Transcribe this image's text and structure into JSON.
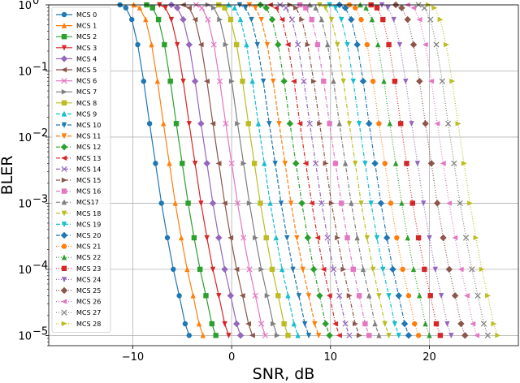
{
  "chart_data": {
    "type": "line",
    "title": "",
    "xlabel": "SNR, dB",
    "ylabel": "BLER",
    "xlim": [
      -18.5,
      29
    ],
    "ylim": [
      7e-06,
      1
    ],
    "yscale": "log",
    "x_ticks": [
      -10,
      0,
      10,
      20
    ],
    "x_tick_labels": [
      "−10",
      "0",
      "10",
      "20"
    ],
    "y_ticks": [
      1e-05,
      0.0001,
      0.001,
      0.01,
      0.1,
      1
    ],
    "y_tick_labels": [
      {
        "base": "10",
        "exp": "−5"
      },
      {
        "base": "10",
        "exp": "−4"
      },
      {
        "base": "10",
        "exp": "−3"
      },
      {
        "base": "10",
        "exp": "−2"
      },
      {
        "base": "10",
        "exp": "−1"
      },
      {
        "base": "10",
        "exp": "0"
      }
    ],
    "grid": true,
    "legend_position": "left",
    "series": [
      {
        "name": "MCS 0",
        "color": "#1f77b4",
        "marker": "circle",
        "dash": "solid",
        "x": [
          -11.3,
          -10.7,
          -10.1,
          -9.5,
          -8.9,
          -8.3,
          -7.7,
          -7.1,
          -6.5,
          -5.9,
          -5.3,
          -4.7,
          -4.3
        ],
        "y": [
          1,
          0.9,
          0.6,
          0.25,
          0.07,
          0.016,
          0.004,
          0.001,
          0.0003,
          0.0001,
          4e-05,
          1.5e-05,
          1e-05
        ]
      },
      {
        "name": "MCS 1",
        "color": "#ff7f0e",
        "marker": "triangle-up",
        "dash": "solid",
        "x": [
          -9.9,
          -9.3,
          -8.7,
          -8.1,
          -7.5,
          -6.9,
          -6.3,
          -5.7,
          -5.1,
          -4.5,
          -3.9,
          -3.3,
          -2.9
        ],
        "y": [
          1,
          0.9,
          0.6,
          0.25,
          0.07,
          0.016,
          0.004,
          0.001,
          0.0003,
          0.0001,
          4e-05,
          1.5e-05,
          1e-05
        ]
      },
      {
        "name": "MCS 2",
        "color": "#2ca02c",
        "marker": "square",
        "dash": "solid",
        "x": [
          -8.6,
          -8.0,
          -7.4,
          -6.8,
          -6.2,
          -5.6,
          -5.0,
          -4.4,
          -3.8,
          -3.2,
          -2.6,
          -2.0,
          -1.6
        ],
        "y": [
          1,
          0.9,
          0.6,
          0.25,
          0.07,
          0.016,
          0.004,
          0.001,
          0.0003,
          0.0001,
          4e-05,
          1.5e-05,
          1e-05
        ]
      },
      {
        "name": "MCS 3",
        "color": "#d62728",
        "marker": "triangle-down",
        "dash": "solid",
        "x": [
          -7.3,
          -6.7,
          -6.1,
          -5.5,
          -4.9,
          -4.3,
          -3.7,
          -3.1,
          -2.5,
          -1.9,
          -1.3,
          -0.7,
          -0.3
        ],
        "y": [
          1,
          0.9,
          0.6,
          0.25,
          0.07,
          0.016,
          0.004,
          0.001,
          0.0003,
          0.0001,
          4e-05,
          1.5e-05,
          1e-05
        ]
      },
      {
        "name": "MCS 4",
        "color": "#9467bd",
        "marker": "diamond",
        "dash": "solid",
        "x": [
          -6.1,
          -5.5,
          -4.9,
          -4.3,
          -3.7,
          -3.1,
          -2.5,
          -1.9,
          -1.3,
          -0.7,
          -0.1,
          0.5,
          0.9
        ],
        "y": [
          1,
          0.9,
          0.6,
          0.25,
          0.07,
          0.016,
          0.004,
          0.001,
          0.0003,
          0.0001,
          4e-05,
          1.5e-05,
          1e-05
        ]
      },
      {
        "name": "MCS 5",
        "color": "#8c564b",
        "marker": "triangle-left",
        "dash": "solid",
        "x": [
          -4.9,
          -4.3,
          -3.7,
          -3.1,
          -2.5,
          -1.9,
          -1.3,
          -0.7,
          -0.1,
          0.5,
          1.1,
          1.7,
          2.1
        ],
        "y": [
          1,
          0.9,
          0.6,
          0.25,
          0.07,
          0.016,
          0.004,
          0.001,
          0.0003,
          0.0001,
          4e-05,
          1.5e-05,
          1e-05
        ]
      },
      {
        "name": "MCS 6",
        "color": "#e377c2",
        "marker": "x",
        "dash": "solid",
        "x": [
          -3.6,
          -3.0,
          -2.4,
          -1.8,
          -1.2,
          -0.6,
          0.0,
          0.6,
          1.2,
          1.8,
          2.4,
          3.0,
          3.4
        ],
        "y": [
          1,
          0.9,
          0.6,
          0.25,
          0.07,
          0.016,
          0.004,
          0.001,
          0.0003,
          0.0001,
          4e-05,
          1.5e-05,
          1e-05
        ]
      },
      {
        "name": "MCS 7",
        "color": "#7f7f7f",
        "marker": "triangle-right",
        "dash": "solid",
        "x": [
          -2.4,
          -1.8,
          -1.2,
          -0.6,
          0.0,
          0.6,
          1.2,
          1.8,
          2.4,
          3.0,
          3.6,
          4.2,
          4.6
        ],
        "y": [
          1,
          0.9,
          0.6,
          0.25,
          0.07,
          0.016,
          0.004,
          0.001,
          0.0003,
          0.0001,
          4e-05,
          1.5e-05,
          1e-05
        ]
      },
      {
        "name": "MCS 8",
        "color": "#bcbd22",
        "marker": "square",
        "dash": "solid",
        "x": [
          -1.3,
          -0.7,
          -0.1,
          0.5,
          1.1,
          1.7,
          2.3,
          2.9,
          3.5,
          4.1,
          4.7,
          5.3,
          5.7
        ],
        "y": [
          1,
          0.9,
          0.6,
          0.25,
          0.07,
          0.016,
          0.004,
          0.001,
          0.0003,
          0.0001,
          4e-05,
          1.5e-05,
          1e-05
        ]
      },
      {
        "name": "MCS 9",
        "color": "#17becf",
        "marker": "triangle-up",
        "dash": "dashed",
        "x": [
          -0.3,
          0.3,
          0.9,
          1.5,
          2.1,
          2.7,
          3.3,
          3.9,
          4.5,
          5.1,
          5.7,
          6.3,
          6.7
        ],
        "y": [
          1,
          0.9,
          0.6,
          0.25,
          0.07,
          0.016,
          0.004,
          0.001,
          0.0003,
          0.0001,
          4e-05,
          1.5e-05,
          1e-05
        ]
      },
      {
        "name": "MCS 10",
        "color": "#1f77b4",
        "marker": "triangle-down",
        "dash": "dashed",
        "x": [
          0.8,
          1.4,
          2.0,
          2.6,
          3.2,
          3.8,
          4.4,
          5.0,
          5.6,
          6.2,
          6.8,
          7.4,
          7.8
        ],
        "y": [
          1,
          0.9,
          0.6,
          0.25,
          0.07,
          0.016,
          0.004,
          0.001,
          0.0003,
          0.0001,
          4e-05,
          1.5e-05,
          1e-05
        ]
      },
      {
        "name": "MCS 11",
        "color": "#ff7f0e",
        "marker": "triangle-down",
        "dash": "dashed",
        "x": [
          1.8,
          2.4,
          3.0,
          3.6,
          4.2,
          4.8,
          5.4,
          6.0,
          6.6,
          7.2,
          7.8,
          8.4,
          8.8
        ],
        "y": [
          1,
          0.9,
          0.6,
          0.25,
          0.07,
          0.016,
          0.004,
          0.001,
          0.0003,
          0.0001,
          4e-05,
          1.5e-05,
          1e-05
        ]
      },
      {
        "name": "MCS 12",
        "color": "#2ca02c",
        "marker": "diamond",
        "dash": "dashdot",
        "x": [
          2.9,
          3.5,
          4.1,
          4.7,
          5.3,
          5.9,
          6.5,
          7.1,
          7.7,
          8.3,
          8.9,
          9.5,
          9.9
        ],
        "y": [
          1,
          0.9,
          0.6,
          0.25,
          0.07,
          0.016,
          0.004,
          0.001,
          0.0003,
          0.0001,
          4e-05,
          1.5e-05,
          1e-05
        ]
      },
      {
        "name": "MCS 13",
        "color": "#d62728",
        "marker": "triangle-left",
        "dash": "dashdot",
        "x": [
          3.9,
          4.5,
          5.1,
          5.7,
          6.3,
          6.9,
          7.5,
          8.1,
          8.7,
          9.3,
          9.9,
          10.5,
          10.9
        ],
        "y": [
          1,
          0.9,
          0.6,
          0.25,
          0.07,
          0.016,
          0.004,
          0.001,
          0.0003,
          0.0001,
          4e-05,
          1.5e-05,
          1e-05
        ]
      },
      {
        "name": "MCS 14",
        "color": "#9467bd",
        "marker": "x",
        "dash": "dashdot",
        "x": [
          4.9,
          5.5,
          6.1,
          6.7,
          7.3,
          7.9,
          8.5,
          9.1,
          9.7,
          10.3,
          10.9,
          11.5,
          11.9
        ],
        "y": [
          1,
          0.9,
          0.6,
          0.25,
          0.07,
          0.016,
          0.004,
          0.001,
          0.0003,
          0.0001,
          4e-05,
          1.5e-05,
          1e-05
        ]
      },
      {
        "name": "MCS 15",
        "color": "#8c564b",
        "marker": "triangle-right",
        "dash": "dashdot",
        "x": [
          5.9,
          6.5,
          7.1,
          7.7,
          8.3,
          8.9,
          9.5,
          10.1,
          10.7,
          11.3,
          11.9,
          12.5,
          12.9
        ],
        "y": [
          1,
          0.9,
          0.6,
          0.25,
          0.07,
          0.016,
          0.004,
          0.001,
          0.0003,
          0.0001,
          4e-05,
          1.5e-05,
          1e-05
        ]
      },
      {
        "name": "MCS 16",
        "color": "#e377c2",
        "marker": "square",
        "dash": "dashdot",
        "x": [
          6.9,
          7.5,
          8.1,
          8.7,
          9.3,
          9.9,
          10.5,
          11.1,
          11.7,
          12.3,
          12.9,
          13.5,
          13.9
        ],
        "y": [
          1,
          0.9,
          0.6,
          0.25,
          0.07,
          0.016,
          0.004,
          0.001,
          0.0003,
          0.0001,
          4e-05,
          1.5e-05,
          1e-05
        ]
      },
      {
        "name": "MCS17",
        "color": "#7f7f7f",
        "marker": "triangle-up",
        "dash": "dashdot",
        "x": [
          7.9,
          8.5,
          9.1,
          9.7,
          10.3,
          10.9,
          11.5,
          12.1,
          12.7,
          13.3,
          13.9,
          14.5,
          14.9
        ],
        "y": [
          1,
          0.9,
          0.6,
          0.25,
          0.07,
          0.016,
          0.004,
          0.001,
          0.0003,
          0.0001,
          4e-05,
          1.5e-05,
          1e-05
        ]
      },
      {
        "name": "MCS 18",
        "color": "#bcbd22",
        "marker": "triangle-down",
        "dash": "dashdot",
        "x": [
          8.9,
          9.5,
          10.1,
          10.7,
          11.3,
          11.9,
          12.5,
          13.1,
          13.7,
          14.3,
          14.9,
          15.5,
          15.9
        ],
        "y": [
          1,
          0.9,
          0.6,
          0.25,
          0.07,
          0.016,
          0.004,
          0.001,
          0.0003,
          0.0001,
          4e-05,
          1.5e-05,
          1e-05
        ]
      },
      {
        "name": "MCS 19",
        "color": "#17becf",
        "marker": "triangle-down",
        "dash": "dashdot",
        "x": [
          9.9,
          10.5,
          11.1,
          11.7,
          12.3,
          12.9,
          13.5,
          14.1,
          14.7,
          15.3,
          15.9,
          16.5,
          16.9
        ],
        "y": [
          1,
          0.9,
          0.6,
          0.25,
          0.07,
          0.016,
          0.004,
          0.001,
          0.0003,
          0.0001,
          4e-05,
          1.5e-05,
          1e-05
        ]
      },
      {
        "name": "MCS 20",
        "color": "#1f77b4",
        "marker": "diamond",
        "dash": "dashdot",
        "x": [
          10.9,
          11.5,
          12.1,
          12.7,
          13.3,
          13.9,
          14.5,
          15.1,
          15.7,
          16.3,
          16.9,
          17.5,
          17.9
        ],
        "y": [
          1,
          0.9,
          0.6,
          0.25,
          0.07,
          0.016,
          0.004,
          0.001,
          0.0003,
          0.0001,
          4e-05,
          1.5e-05,
          1e-05
        ]
      },
      {
        "name": "MCS 21",
        "color": "#ff7f0e",
        "marker": "circle",
        "dash": "dotted",
        "x": [
          11.9,
          12.5,
          13.1,
          13.7,
          14.3,
          14.9,
          15.5,
          16.1,
          16.7,
          17.3,
          17.9,
          18.5,
          18.9
        ],
        "y": [
          1,
          0.9,
          0.6,
          0.25,
          0.07,
          0.016,
          0.004,
          0.001,
          0.0003,
          0.0001,
          4e-05,
          1.5e-05,
          1e-05
        ]
      },
      {
        "name": "MCS 22",
        "color": "#2ca02c",
        "marker": "triangle-up",
        "dash": "dotted",
        "x": [
          13.0,
          13.6,
          14.2,
          14.8,
          15.4,
          16.0,
          16.6,
          17.2,
          17.8,
          18.4,
          19.0,
          19.6,
          20.0
        ],
        "y": [
          1,
          0.9,
          0.6,
          0.25,
          0.07,
          0.016,
          0.004,
          0.001,
          0.0003,
          0.0001,
          4e-05,
          1.5e-05,
          1e-05
        ]
      },
      {
        "name": "MCS 23",
        "color": "#d62728",
        "marker": "square",
        "dash": "dotted",
        "x": [
          14.1,
          14.7,
          15.3,
          15.9,
          16.5,
          17.1,
          17.7,
          18.3,
          18.9,
          19.5,
          20.1,
          20.7,
          21.1
        ],
        "y": [
          1,
          0.9,
          0.6,
          0.25,
          0.07,
          0.016,
          0.004,
          0.001,
          0.0003,
          0.0001,
          4e-05,
          1.5e-05,
          1e-05
        ]
      },
      {
        "name": "MCS 24",
        "color": "#9467bd",
        "marker": "triangle-down",
        "dash": "dotted",
        "x": [
          15.2,
          15.8,
          16.4,
          17.0,
          17.6,
          18.2,
          18.8,
          19.4,
          20.0,
          20.6,
          21.2,
          21.8,
          22.2
        ],
        "y": [
          1,
          0.9,
          0.6,
          0.25,
          0.07,
          0.016,
          0.004,
          0.001,
          0.0003,
          0.0001,
          4e-05,
          1.5e-05,
          1e-05
        ]
      },
      {
        "name": "MCS 25",
        "color": "#8c564b",
        "marker": "diamond",
        "dash": "dotted",
        "x": [
          16.6,
          17.2,
          17.8,
          18.4,
          19.0,
          19.6,
          20.2,
          20.8,
          21.4,
          22.0,
          22.6,
          23.2,
          23.6
        ],
        "y": [
          1,
          0.9,
          0.6,
          0.25,
          0.07,
          0.016,
          0.004,
          0.001,
          0.0003,
          0.0001,
          4e-05,
          1.5e-05,
          1e-05
        ]
      },
      {
        "name": "MCS 26",
        "color": "#e377c2",
        "marker": "triangle-left",
        "dash": "dotted",
        "x": [
          17.8,
          18.4,
          19.0,
          19.6,
          20.2,
          20.8,
          21.4,
          22.0,
          22.6,
          23.2,
          23.8,
          24.4,
          24.8
        ],
        "y": [
          1,
          0.9,
          0.6,
          0.25,
          0.07,
          0.016,
          0.004,
          0.001,
          0.0003,
          0.0001,
          4e-05,
          1.5e-05,
          1e-05
        ]
      },
      {
        "name": "MCS 27",
        "color": "#7f7f7f",
        "marker": "x",
        "dash": "dotted",
        "x": [
          18.9,
          19.5,
          20.1,
          20.7,
          21.3,
          21.9,
          22.5,
          23.1,
          23.7,
          24.3,
          24.9,
          25.5,
          25.9
        ],
        "y": [
          1,
          0.9,
          0.6,
          0.25,
          0.07,
          0.016,
          0.004,
          0.001,
          0.0003,
          0.0001,
          4e-05,
          1.5e-05,
          1e-05
        ]
      },
      {
        "name": "MCS 28",
        "color": "#bcbd22",
        "marker": "triangle-right",
        "dash": "dotted",
        "x": [
          19.9,
          20.5,
          21.1,
          21.7,
          22.3,
          22.9,
          23.5,
          24.1,
          24.7,
          25.3,
          25.9,
          26.5,
          26.9
        ],
        "y": [
          1,
          0.9,
          0.6,
          0.25,
          0.07,
          0.016,
          0.004,
          0.001,
          0.0003,
          0.0001,
          4e-05,
          1.5e-05,
          1e-05
        ]
      }
    ]
  }
}
